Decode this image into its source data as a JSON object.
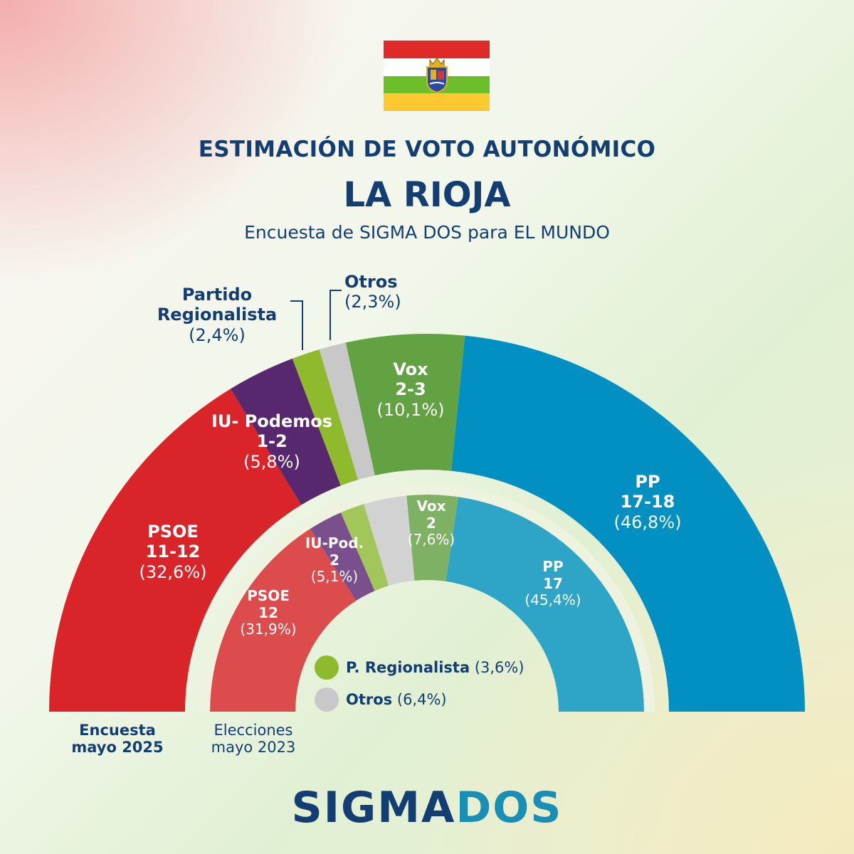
{
  "flag": {
    "colors": [
      "#e02a2a",
      "#ffffff",
      "#6cbe2b",
      "#fdc830"
    ],
    "emblem_icon": "la-rioja-coat-of-arms"
  },
  "header": {
    "title": "ESTIMACIÓN DE VOTO AUTONÓMICO",
    "region": "LA RIOJA",
    "subtitle": "Encuesta de SIGMA DOS para EL MUNDO"
  },
  "chart_data": {
    "type": "parliament-semicircle",
    "title": "ESTIMACIÓN DE VOTO AUTONÓMICO",
    "rings": [
      {
        "name": "Encuesta mayo 2025",
        "ring": "outer",
        "parties": [
          {
            "party": "PSOE",
            "seats": "11-12",
            "percent": 32.6,
            "pct_label": "(32,6%)",
            "color": "#d9252a"
          },
          {
            "party": "IU- Podemos",
            "seats": "1-2",
            "percent": 5.8,
            "pct_label": "(5,8%)",
            "color": "#57286e"
          },
          {
            "party": "Partido Regionalista",
            "seats": "",
            "percent": 2.4,
            "pct_label": "(2,4%)",
            "color": "#8fba2e"
          },
          {
            "party": "Otros",
            "seats": "",
            "percent": 2.3,
            "pct_label": "(2,3%)",
            "color": "#c8c8c8"
          },
          {
            "party": "Vox",
            "seats": "2-3",
            "percent": 10.1,
            "pct_label": "(10,1%)",
            "color": "#63a243"
          },
          {
            "party": "PP",
            "seats": "17-18",
            "percent": 46.8,
            "pct_label": "(46,8%)",
            "color": "#0190c1"
          }
        ]
      },
      {
        "name": "Elecciones mayo 2023",
        "ring": "inner",
        "parties": [
          {
            "party": "PSOE",
            "seats": "12",
            "percent": 31.9,
            "pct_label": "(31,9%)",
            "color": "#dd4c4c"
          },
          {
            "party": "IU-Pod.",
            "seats": "2",
            "percent": 5.1,
            "pct_label": "(5,1%)",
            "color": "#7a4f8e"
          },
          {
            "party": "P. Regionalista",
            "seats": "",
            "percent": 3.6,
            "pct_label": "(3,6%)",
            "color": "#a3c65a"
          },
          {
            "party": "Otros",
            "seats": "",
            "percent": 6.4,
            "pct_label": "(6,4%)",
            "color": "#d2d2d2"
          },
          {
            "party": "Vox",
            "seats": "2",
            "percent": 7.6,
            "pct_label": "(7,6%)",
            "color": "#7fb165"
          },
          {
            "party": "PP",
            "seats": "17",
            "percent": 45.4,
            "pct_label": "(45,4%)",
            "color": "#2ea5c6"
          }
        ]
      }
    ]
  },
  "labels": {
    "outer_pr_name_1": "Partido",
    "outer_pr_name_2": "Regionalista",
    "outer_pr_pct": "(2,4%)",
    "outer_otros_name": "Otros",
    "outer_otros_pct": "(2,3%)"
  },
  "legend": [
    {
      "name": "P. Regionalista",
      "pct": "(3,6%)",
      "color": "#8fba2e"
    },
    {
      "name": "Otros",
      "pct": "(6,4%)",
      "color": "#c8c8c8"
    }
  ],
  "footer": {
    "outer_line1": "Encuesta",
    "outer_line2": "mayo 2025",
    "inner_line1": "Elecciones",
    "inner_line2": "mayo 2023"
  },
  "logo": {
    "part1": "SIGMA",
    "part2": "DOS",
    "color1": "#133e73",
    "color2": "#1a8fb5"
  }
}
